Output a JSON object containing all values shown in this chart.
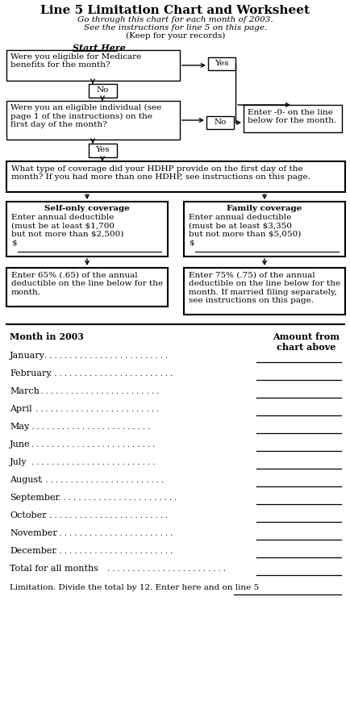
{
  "title": "Line 5 Limitation Chart and Worksheet",
  "subtitle1": "Go through this chart for each month of 2003.",
  "subtitle2": "See the instructions for line 5 on this page.",
  "subtitle3": "(Keep for your records)",
  "start_here": "Start Here",
  "box1_text": "Were you eligible for Medicare\nbenefits for the month?",
  "yes_label1": "Yes",
  "no_label1": "No",
  "box2_text": "Were you an eligible individual (see\npage 1 of the instructions) on the\nfirst day of the month?",
  "no_label2": "No",
  "enter0_text": "Enter -0- on the line\nbelow for the month.",
  "yes_label2": "Yes",
  "box3_text": "What type of coverage did your HDHP provide on the first day of the\nmonth? If you had more than one HDHP, see instructions on this page.",
  "self_title": "Self-only coverage",
  "self_body": "Enter annual deductible\n(must be at least $1,700\nbut not more than $2,500)\n$",
  "family_title": "Family coverage",
  "family_body": "Enter annual deductible\n(must be at least $3,350\nbut not more than $5,050)\n$",
  "self_pct": "Enter 65% (.65) of the annual\ndeductible on the line below for the\nmonth.",
  "family_pct": "Enter 75% (.75) of the annual\ndeductible on the line below for the\nmonth. If married filing separately,\nsee instructions on this page.",
  "ws_header1": "Month in 2003",
  "ws_header2": "Amount from\nchart above",
  "months": [
    "January",
    "February",
    "March",
    "April",
    "May",
    "June",
    "July",
    "August",
    "September",
    "October",
    "November",
    "December"
  ],
  "total_label": "Total for all months",
  "limitation_label": "Limitation. Divide the total by 12. Enter here and on line 5",
  "bg_color": "#ffffff",
  "text_color": "#000000"
}
